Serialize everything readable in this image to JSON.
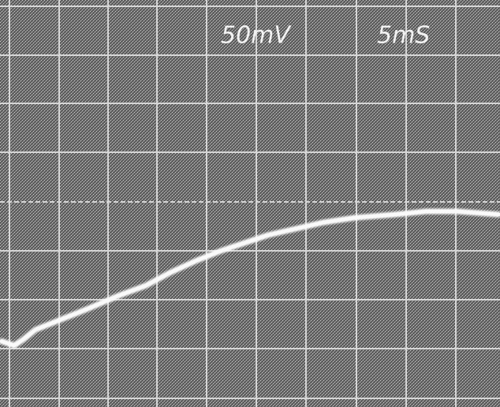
{
  "screen": {
    "volts_per_div": "50mV",
    "time_per_div": "5mS"
  }
}
